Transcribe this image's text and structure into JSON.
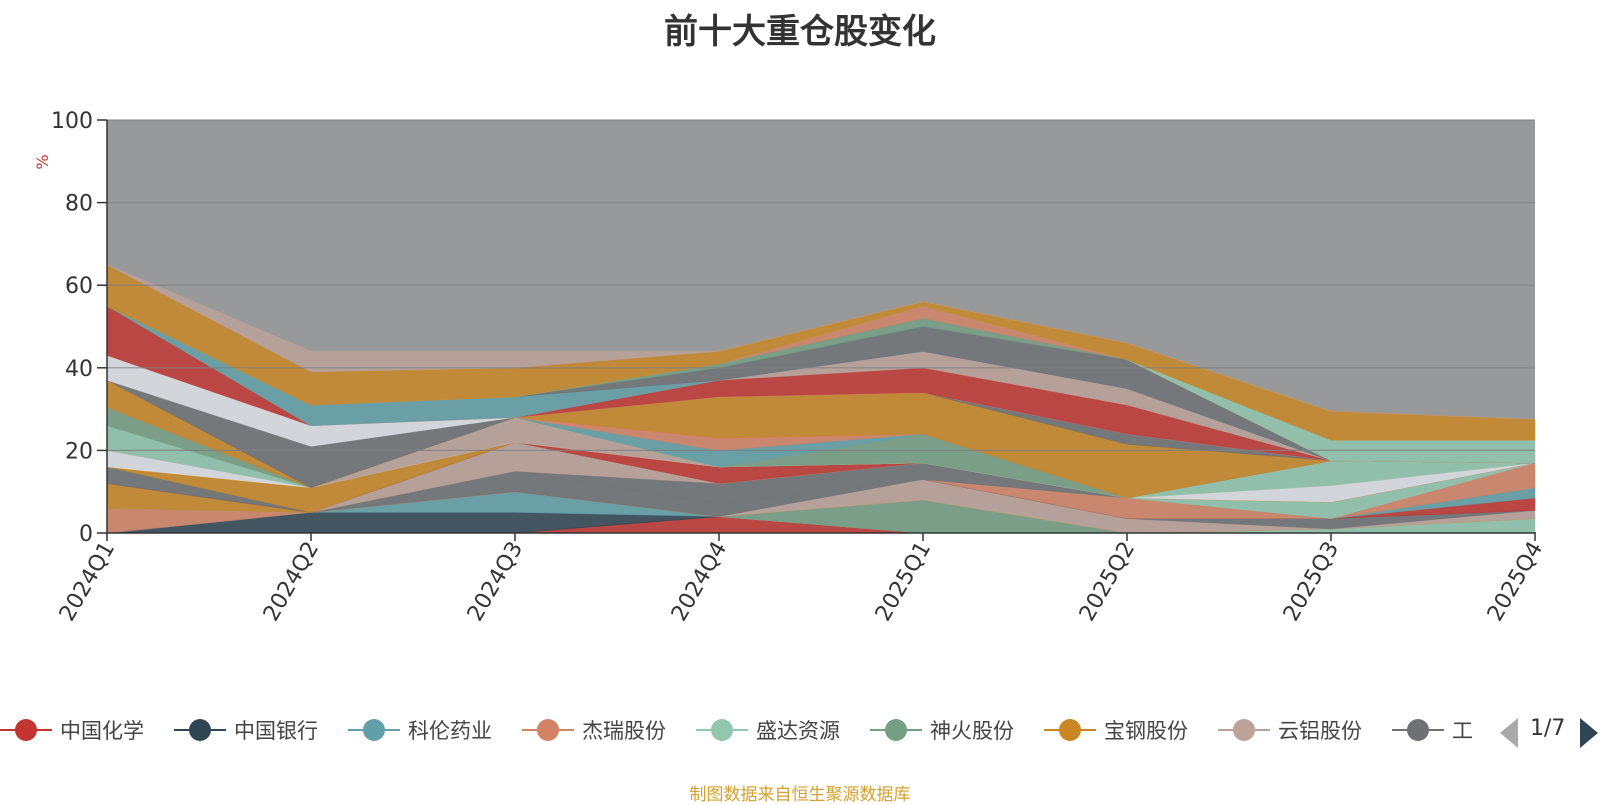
{
  "chart_data": {
    "type": "area",
    "title": "前十大重仓股变化",
    "ylabel": "%",
    "xlabel": "",
    "ylim": [
      0,
      100
    ],
    "y_ticks": [
      0,
      20,
      40,
      60,
      80,
      100
    ],
    "categories": [
      "2024Q1",
      "2024Q2",
      "2024Q3",
      "2024Q4",
      "2025Q1",
      "2025Q2",
      "2025Q3",
      "2025Q4"
    ],
    "stacked": true,
    "grid": true,
    "legend_position": "bottom",
    "plot_background": "#98999b",
    "series": [
      {
        "name": "中国化学",
        "color": "#c23531",
        "values": [
          0,
          0,
          0,
          4,
          0,
          0,
          0,
          0
        ]
      },
      {
        "name": "中国银行",
        "color": "#2f4554",
        "values": [
          0,
          5,
          5,
          0,
          0,
          0,
          0,
          0
        ]
      },
      {
        "name": "科伦药业",
        "color": "#61a0a8",
        "values": [
          0,
          0,
          5,
          0,
          0,
          0,
          0,
          0
        ]
      },
      {
        "name": "杰瑞股份",
        "color": "#d48265",
        "values": [
          6,
          0,
          0,
          0,
          0,
          0,
          0,
          0
        ]
      },
      {
        "name": "盛达资源",
        "color": "#91c7ae",
        "values": [
          0,
          0,
          0,
          0,
          0,
          0,
          1,
          3.5
        ]
      },
      {
        "name": "神火股份",
        "color": "#749f83",
        "values": [
          0,
          0,
          0,
          0,
          8,
          0,
          0,
          0
        ]
      },
      {
        "name": "宝钢股份",
        "color": "#ca8622",
        "values": [
          6,
          0,
          0,
          0,
          0,
          0,
          0,
          0
        ]
      },
      {
        "name": "云铝股份",
        "color": "#bda29a",
        "values": [
          0,
          0,
          0,
          0,
          5,
          3.5,
          0,
          2
        ]
      },
      {
        "name": "",
        "color": "#6e7074",
        "values": [
          0,
          0,
          5,
          3,
          0,
          0,
          2.5,
          0
        ]
      },
      {
        "name": "",
        "color": "#c23531",
        "values": [
          0,
          0,
          0,
          0,
          0,
          0,
          0,
          3
        ]
      },
      {
        "name": "",
        "color": "#546570",
        "values": [
          0,
          0,
          0,
          0,
          0,
          0,
          0,
          0
        ]
      },
      {
        "name": "",
        "color": "#d48265",
        "values": [
          0,
          0,
          0,
          0,
          0,
          5,
          0,
          0
        ]
      },
      {
        "name": "",
        "color": "#61a0a8",
        "values": [
          0,
          0,
          0,
          0,
          0,
          0,
          0,
          2.5
        ]
      },
      {
        "name": "",
        "color": "#6e7074",
        "values": [
          0,
          0,
          0,
          5,
          4,
          0,
          0,
          0
        ]
      },
      {
        "name": "",
        "color": "#bda29a",
        "values": [
          0,
          0,
          7,
          0,
          0,
          0,
          0,
          0
        ]
      },
      {
        "name": "",
        "color": "#d48265",
        "values": [
          0,
          0,
          0,
          0,
          0,
          0,
          0,
          6
        ]
      },
      {
        "name": "",
        "color": "#91c7ae",
        "values": [
          0,
          0,
          0,
          0,
          0,
          0,
          4,
          0
        ]
      },
      {
        "name": "",
        "color": "#c23531",
        "values": [
          0,
          0,
          0,
          4,
          0,
          0,
          0,
          0
        ]
      },
      {
        "name": "",
        "color": "#6e7074",
        "values": [
          4,
          0,
          0,
          0,
          0,
          0,
          0,
          0
        ]
      },
      {
        "name": "",
        "color": "#ca8622",
        "values": [
          0,
          6,
          0,
          0,
          0,
          0,
          0,
          0
        ]
      },
      {
        "name": "",
        "color": "#dfe3e8",
        "values": [
          4,
          0,
          0,
          0,
          0,
          0,
          4,
          0
        ]
      },
      {
        "name": "",
        "color": "#bda29a",
        "values": [
          0,
          0,
          6,
          0,
          0,
          0,
          0,
          0
        ]
      },
      {
        "name": "",
        "color": "#91c7ae",
        "values": [
          6,
          0,
          0,
          0,
          0,
          0,
          6,
          0
        ]
      },
      {
        "name": "",
        "color": "#749f83",
        "values": [
          4.5,
          0,
          0,
          0,
          7,
          0,
          0,
          0
        ]
      },
      {
        "name": "",
        "color": "#61a0a8",
        "values": [
          0,
          0,
          0,
          4,
          0,
          0,
          0,
          0
        ]
      },
      {
        "name": "",
        "color": "#d48265",
        "values": [
          0,
          0,
          0,
          3,
          0,
          0,
          0,
          0
        ]
      },
      {
        "name": "",
        "color": "#ca8622",
        "values": [
          6.5,
          0,
          0,
          10,
          10,
          13,
          0,
          0
        ]
      },
      {
        "name": "",
        "color": "#6e7074",
        "values": [
          0,
          10,
          0,
          0,
          0,
          2.5,
          0,
          0
        ]
      },
      {
        "name": "",
        "color": "#dfe3e8",
        "values": [
          6,
          5,
          0,
          0,
          0,
          0,
          0,
          0
        ]
      },
      {
        "name": "",
        "color": "#c23531",
        "values": [
          12,
          0,
          0,
          4,
          6,
          7,
          0,
          0
        ]
      },
      {
        "name": "",
        "color": "#bda29a",
        "values": [
          0,
          0,
          0,
          0,
          4,
          4,
          0,
          0
        ]
      },
      {
        "name": "",
        "color": "#61a0a8",
        "values": [
          0,
          5,
          5,
          0,
          0,
          0,
          0,
          0
        ]
      },
      {
        "name": "",
        "color": "#6e7074",
        "values": [
          0,
          0,
          0,
          3,
          6,
          7,
          0,
          0
        ]
      },
      {
        "name": "",
        "color": "#749f83",
        "values": [
          0,
          0,
          0,
          1,
          2,
          0,
          0,
          0
        ]
      },
      {
        "name": "",
        "color": "#d48265",
        "values": [
          0,
          0,
          0,
          0,
          3,
          0,
          0,
          0
        ]
      },
      {
        "name": "",
        "color": "#91c7ae",
        "values": [
          0,
          0,
          0,
          0,
          0,
          0,
          5,
          5.5
        ]
      },
      {
        "name": "",
        "color": "#ca8622",
        "values": [
          10,
          8,
          7,
          3,
          1,
          4,
          7,
          5
        ]
      },
      {
        "name": "",
        "color": "#bda29a",
        "values": [
          0,
          5,
          4,
          0,
          0,
          0,
          0,
          0
        ]
      }
    ]
  },
  "legend": {
    "visible_items": [
      "中国化学",
      "中国银行",
      "科伦药业",
      "杰瑞股份",
      "盛达资源",
      "神火股份",
      "宝钢股份",
      "云铝股份",
      "工"
    ],
    "page_indicator": "1/7"
  },
  "source_note": "制图数据来自恒生聚源数据库"
}
